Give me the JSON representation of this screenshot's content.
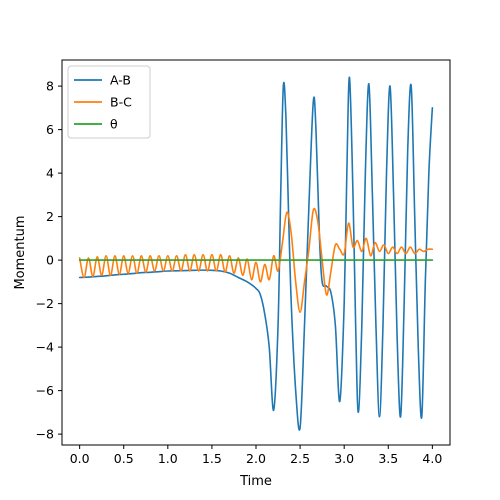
{
  "chart_data": {
    "type": "line",
    "title": "",
    "xlabel": "Time",
    "ylabel": "Momentum",
    "xlim": [
      -0.2,
      4.2
    ],
    "ylim": [
      -8.5,
      9.2
    ],
    "xticks": [
      0.0,
      0.5,
      1.0,
      1.5,
      2.0,
      2.5,
      3.0,
      3.5,
      4.0
    ],
    "yticks": [
      -8,
      -6,
      -4,
      -2,
      0,
      2,
      4,
      6,
      8
    ],
    "xtick_labels": [
      "0.0",
      "0.5",
      "1.0",
      "1.5",
      "2.0",
      "2.5",
      "3.0",
      "3.5",
      "4.0"
    ],
    "ytick_labels": [
      "−8",
      "−6",
      "−4",
      "−2",
      "0",
      "2",
      "4",
      "6",
      "8"
    ],
    "grid": false,
    "legend_position": "top-left",
    "series": [
      {
        "name": "A-B",
        "color": "#1f77b4",
        "x": [
          0.0,
          0.1,
          0.2,
          0.3,
          0.4,
          0.5,
          0.6,
          0.7,
          0.8,
          0.9,
          1.0,
          1.1,
          1.2,
          1.3,
          1.4,
          1.5,
          1.6,
          1.7,
          1.8,
          1.9,
          2.0,
          2.05,
          2.1,
          2.15,
          2.2,
          2.25,
          2.28,
          2.31,
          2.34,
          2.37,
          2.4,
          2.45,
          2.5,
          2.55,
          2.6,
          2.65,
          2.68,
          2.72,
          2.75,
          2.8,
          2.85,
          2.9,
          2.95,
          3.0,
          3.03,
          3.06,
          3.1,
          3.13,
          3.16,
          3.2,
          3.24,
          3.28,
          3.32,
          3.36,
          3.4,
          3.44,
          3.48,
          3.52,
          3.56,
          3.6,
          3.64,
          3.68,
          3.72,
          3.76,
          3.8,
          3.84,
          3.88,
          3.92,
          3.96,
          4.0
        ],
        "values": [
          -0.8,
          -0.78,
          -0.75,
          -0.72,
          -0.68,
          -0.65,
          -0.62,
          -0.58,
          -0.56,
          -0.53,
          -0.5,
          -0.49,
          -0.48,
          -0.47,
          -0.46,
          -0.47,
          -0.5,
          -0.6,
          -0.8,
          -1.0,
          -1.3,
          -1.6,
          -2.5,
          -4.0,
          -6.9,
          -3.0,
          3.0,
          8.0,
          6.5,
          2.0,
          -2.0,
          -6.0,
          -7.7,
          -3.0,
          2.5,
          7.3,
          6.0,
          1.0,
          -1.0,
          -1.2,
          -1.5,
          -3.0,
          -6.5,
          -2.0,
          4.0,
          8.4,
          3.0,
          -3.0,
          -7.0,
          -3.0,
          4.0,
          8.1,
          3.0,
          -3.0,
          -7.2,
          -3.0,
          4.0,
          8.0,
          3.0,
          -3.5,
          -7.2,
          -2.0,
          5.0,
          8.0,
          2.0,
          -4.0,
          -7.2,
          -1.0,
          4.0,
          7.0
        ]
      },
      {
        "name": "B-C",
        "color": "#ff7f0e",
        "x": [
          0.0,
          0.05,
          0.1,
          0.15,
          0.2,
          0.25,
          0.3,
          0.35,
          0.4,
          0.45,
          0.5,
          0.55,
          0.6,
          0.65,
          0.7,
          0.75,
          0.8,
          0.85,
          0.9,
          0.95,
          1.0,
          1.05,
          1.1,
          1.15,
          1.2,
          1.25,
          1.3,
          1.35,
          1.4,
          1.45,
          1.5,
          1.55,
          1.6,
          1.65,
          1.7,
          1.75,
          1.8,
          1.85,
          1.9,
          1.95,
          2.0,
          2.05,
          2.1,
          2.15,
          2.2,
          2.25,
          2.3,
          2.35,
          2.4,
          2.45,
          2.5,
          2.55,
          2.6,
          2.65,
          2.7,
          2.75,
          2.8,
          2.85,
          2.9,
          2.95,
          3.0,
          3.05,
          3.1,
          3.15,
          3.2,
          3.25,
          3.3,
          3.35,
          3.4,
          3.45,
          3.5,
          3.55,
          3.6,
          3.65,
          3.7,
          3.75,
          3.8,
          3.85,
          3.9,
          3.95,
          4.0
        ],
        "values": [
          0.1,
          -0.8,
          0.1,
          -0.75,
          0.15,
          -0.7,
          0.2,
          -0.7,
          0.2,
          -0.65,
          0.2,
          -0.6,
          0.2,
          -0.6,
          0.2,
          -0.55,
          0.2,
          -0.5,
          0.2,
          -0.5,
          0.2,
          -0.5,
          0.2,
          -0.5,
          0.25,
          -0.5,
          0.25,
          -0.5,
          0.25,
          -0.5,
          0.25,
          -0.5,
          0.25,
          -0.55,
          0.2,
          -0.6,
          0.1,
          -0.7,
          0.05,
          -0.9,
          -0.1,
          -1.0,
          -0.2,
          -0.9,
          0.2,
          -0.5,
          0.8,
          2.2,
          1.2,
          -1.0,
          -2.4,
          -1.0,
          0.5,
          2.3,
          1.8,
          0.0,
          -1.6,
          -0.5,
          0.7,
          0.5,
          0.3,
          1.7,
          0.6,
          0.9,
          0.4,
          1.0,
          0.2,
          0.8,
          0.4,
          0.7,
          0.3,
          0.6,
          0.3,
          0.6,
          0.3,
          0.6,
          0.3,
          0.5,
          0.4,
          0.5,
          0.5
        ]
      },
      {
        "name": "θ",
        "color": "#2ca02c",
        "x": [
          0.0,
          4.0
        ],
        "values": [
          0.0,
          0.0
        ]
      }
    ]
  }
}
